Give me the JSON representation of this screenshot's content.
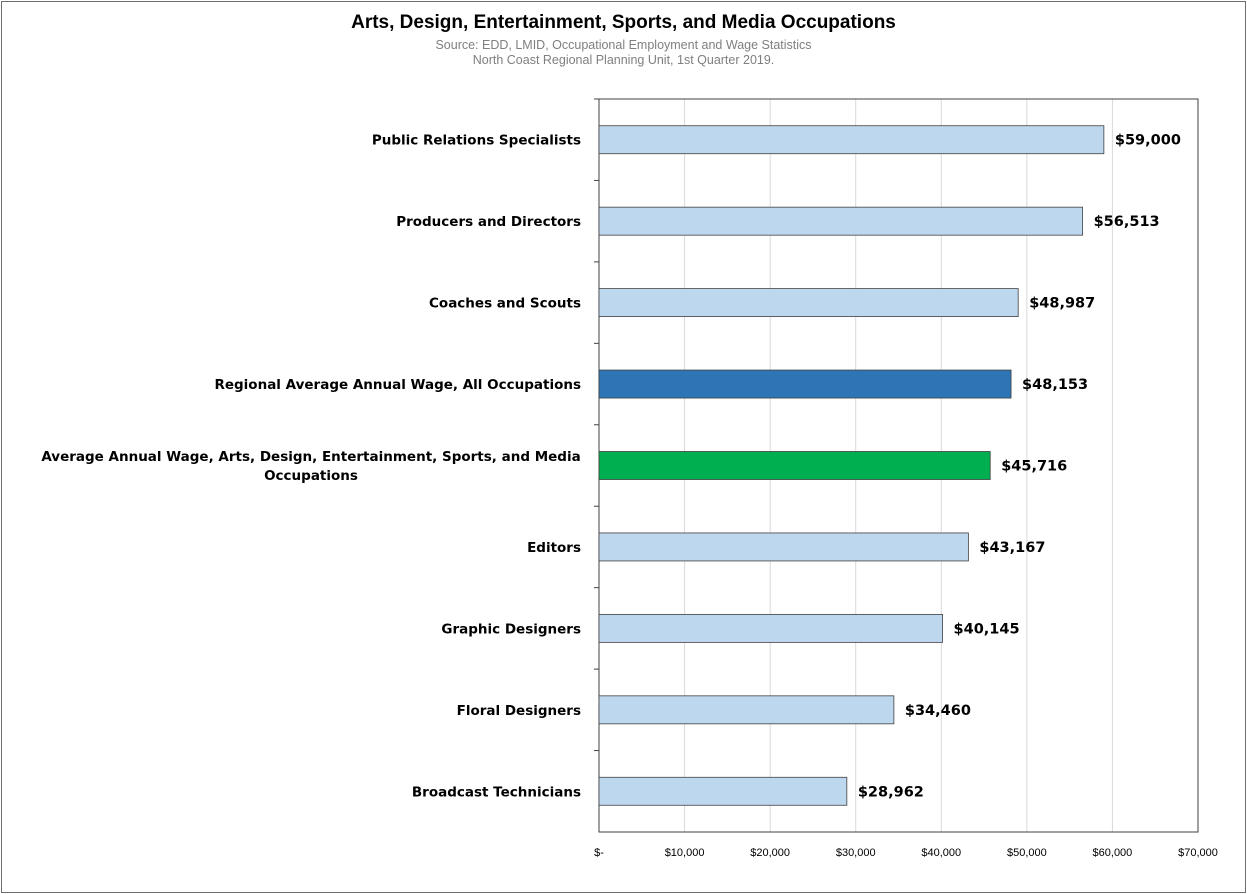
{
  "chart_data": {
    "type": "bar",
    "orientation": "horizontal",
    "title": "Arts, Design, Entertainment, Sports, and Media Occupations",
    "subtitle_lines": [
      "Source: EDD, LMID, Occupational Employment and Wage Statistics",
      "North Coast Regional Planning Unit, 1st Quarter 2019."
    ],
    "categories": [
      [
        "Public Relations Specialists"
      ],
      [
        "Producers and Directors"
      ],
      [
        "Coaches and Scouts"
      ],
      [
        "Regional Average Annual Wage, All Occupations"
      ],
      [
        "Average Annual Wage, Arts, Design, Entertainment, Sports, and Media",
        "Occupations"
      ],
      [
        "Editors"
      ],
      [
        "Graphic Designers"
      ],
      [
        "Floral Designers"
      ],
      [
        "Broadcast Technicians"
      ]
    ],
    "values": [
      59000,
      56513,
      48987,
      48153,
      45716,
      43167,
      40145,
      34460,
      28962
    ],
    "data_labels": [
      "$59,000",
      "$56,513",
      "$48,987",
      "$48,153",
      "$45,716",
      "$43,167",
      "$40,145",
      "$34,460",
      "$28,962"
    ],
    "bar_colors": [
      "#bdd7ee",
      "#bdd7ee",
      "#bdd7ee",
      "#2e75b6",
      "#00b050",
      "#bdd7ee",
      "#bdd7ee",
      "#bdd7ee",
      "#bdd7ee"
    ],
    "xlim": [
      0,
      70000
    ],
    "x_ticks": [
      0,
      10000,
      20000,
      30000,
      40000,
      50000,
      60000,
      70000
    ],
    "x_tick_labels": [
      "$-",
      "$10,000",
      "$20,000",
      "$30,000",
      "$40,000",
      "$50,000",
      "$60,000",
      "$70,000"
    ],
    "grid": true,
    "legend": false,
    "xlabel": "",
    "ylabel": ""
  }
}
